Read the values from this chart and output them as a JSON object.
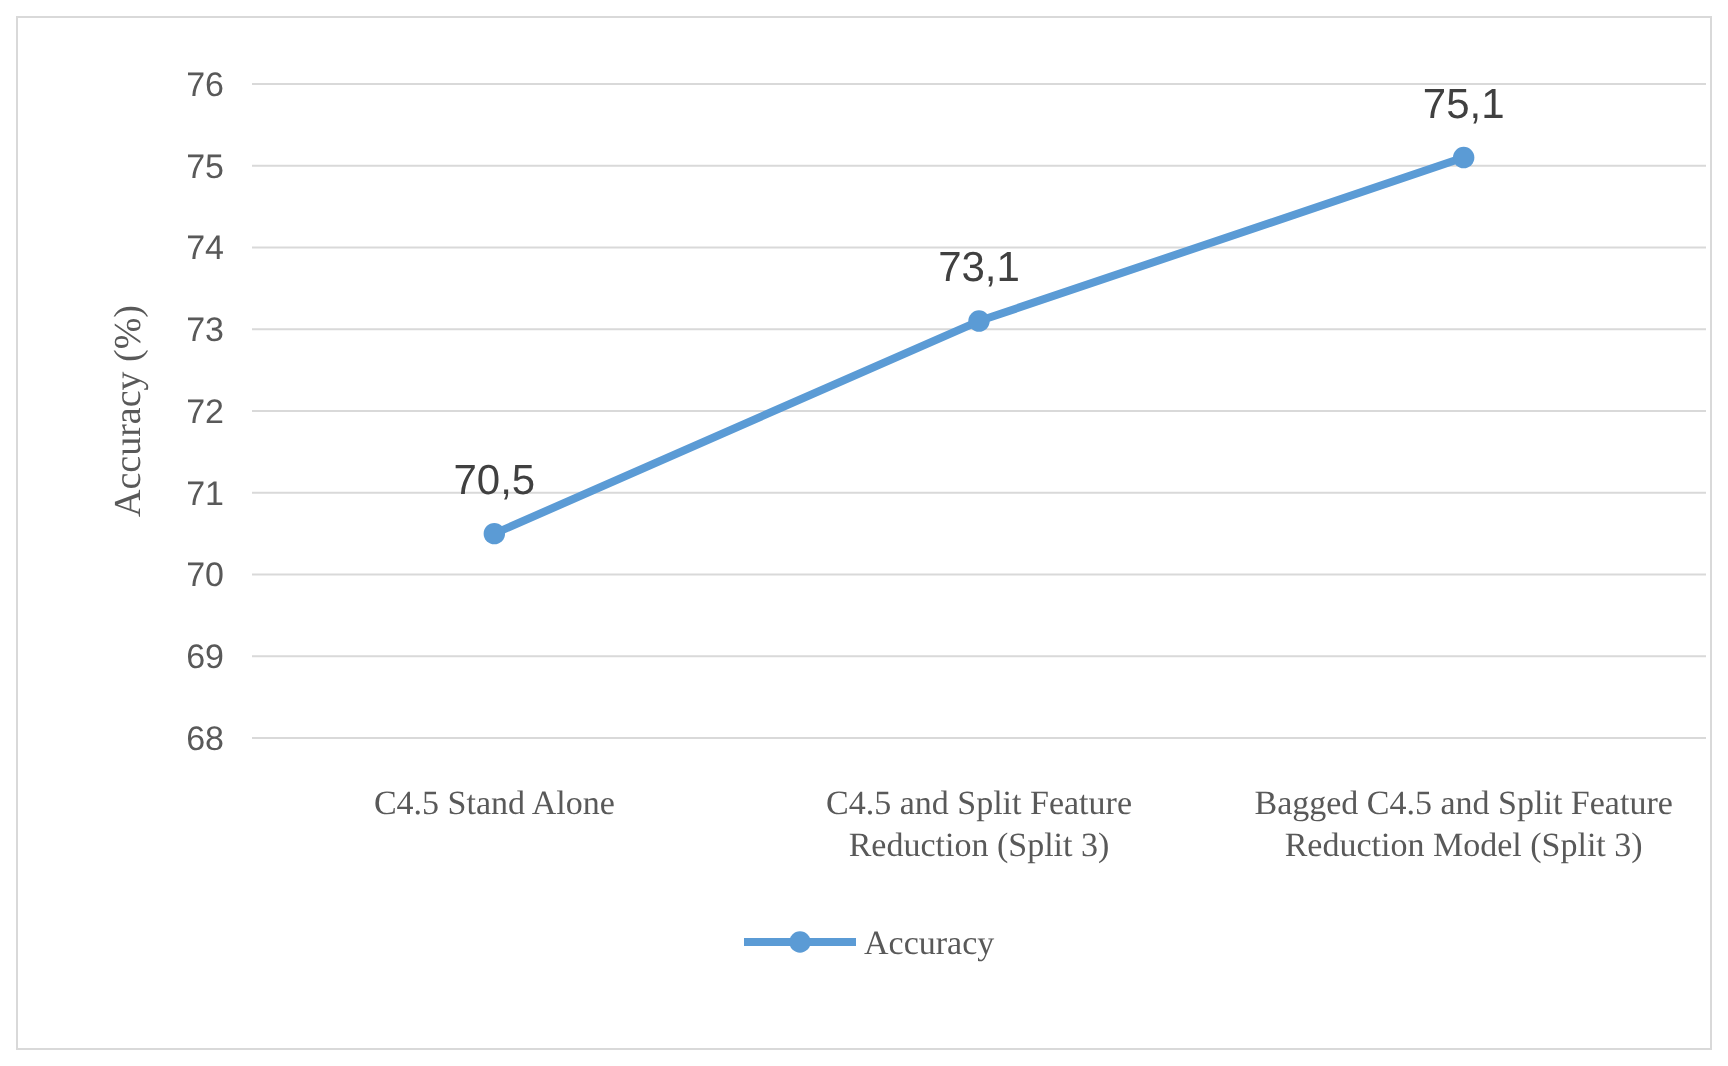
{
  "chart_data": {
    "type": "line",
    "ylabel": "Accuracy (%)",
    "categories": [
      "C4.5 Stand Alone",
      "C4.5 and Split Feature Reduction (Split 3)",
      "Bagged C4.5 and Split Feature Reduction Model (Split 3)"
    ],
    "series": [
      {
        "name": "Accuracy",
        "color": "#5b9bd5",
        "values": [
          70.5,
          73.1,
          75.1
        ],
        "value_labels": [
          "70,5",
          "73,1",
          "75,1"
        ]
      }
    ],
    "ylim": [
      68,
      76
    ],
    "yticks": [
      68,
      69,
      70,
      71,
      72,
      73,
      74,
      75,
      76
    ],
    "grid": "y",
    "legend": "bottom",
    "marker": "circle",
    "line_style": "solid"
  }
}
